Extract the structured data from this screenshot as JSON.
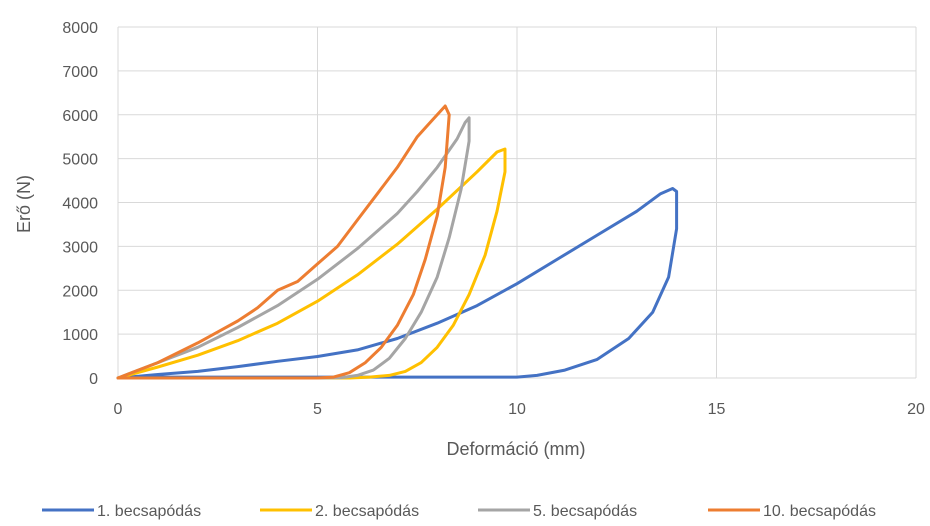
{
  "chart_data": {
    "type": "line",
    "xlabel": "Deformáció (mm)",
    "ylabel": "Erő (N)",
    "xlim": [
      0,
      20
    ],
    "ylim": [
      0,
      8000
    ],
    "x_ticks": [
      "0",
      "5",
      "10",
      "15",
      "20"
    ],
    "y_ticks": [
      "0",
      "1000",
      "2000",
      "3000",
      "4000",
      "5000",
      "6000",
      "7000",
      "8000"
    ],
    "grid": true,
    "legend_position": "bottom",
    "series": [
      {
        "name": "1. becsapódás",
        "color": "#4472C4",
        "x": [
          0,
          1,
          2,
          3,
          4,
          5,
          6,
          7,
          8,
          9,
          10,
          11,
          12,
          13,
          13.6,
          13.9,
          14.0,
          14.0,
          13.8,
          13.4,
          12.8,
          12.0,
          11.2,
          10.5,
          10.0,
          9,
          8,
          7,
          6,
          5,
          4,
          3,
          2,
          1,
          0
        ],
        "y": [
          0,
          80,
          150,
          260,
          380,
          490,
          640,
          900,
          1250,
          1650,
          2150,
          2700,
          3250,
          3800,
          4200,
          4320,
          4250,
          3400,
          2300,
          1500,
          900,
          420,
          180,
          60,
          20,
          20,
          20,
          20,
          20,
          20,
          20,
          20,
          20,
          20,
          0
        ]
      },
      {
        "name": "2. becsapódás",
        "color": "#FFC000",
        "x": [
          0,
          1,
          2,
          3,
          4,
          5,
          6,
          7,
          8,
          9,
          9.5,
          9.7,
          9.7,
          9.5,
          9.2,
          8.8,
          8.4,
          8.0,
          7.6,
          7.2,
          6.8,
          6.3,
          5.8,
          5,
          4,
          3,
          2,
          1,
          0
        ],
        "y": [
          0,
          250,
          520,
          850,
          1250,
          1750,
          2350,
          3050,
          3850,
          4700,
          5150,
          5220,
          4700,
          3800,
          2800,
          1900,
          1200,
          700,
          350,
          150,
          60,
          20,
          0,
          0,
          0,
          0,
          0,
          0,
          0
        ]
      },
      {
        "name": "5. becsapódás",
        "color": "#A5A5A5",
        "x": [
          0,
          1,
          2,
          3,
          4,
          5,
          6,
          7,
          7.5,
          8.0,
          8.5,
          8.7,
          8.8,
          8.8,
          8.6,
          8.3,
          8.0,
          7.6,
          7.2,
          6.8,
          6.4,
          6.0,
          5.6,
          5,
          4,
          3,
          2,
          1,
          0
        ],
        "y": [
          0,
          350,
          700,
          1150,
          1650,
          2250,
          2950,
          3750,
          4250,
          4800,
          5450,
          5820,
          5930,
          5400,
          4300,
          3200,
          2300,
          1500,
          900,
          450,
          180,
          60,
          10,
          0,
          0,
          0,
          0,
          0,
          0
        ]
      },
      {
        "name": "10. becsapódás",
        "color": "#ED7D31",
        "x": [
          0,
          1,
          2,
          2.5,
          3,
          3.5,
          4,
          4.5,
          5,
          5.5,
          6,
          6.5,
          7,
          7.5,
          7.9,
          8.2,
          8.3,
          8.2,
          8.0,
          7.7,
          7.4,
          7.0,
          6.6,
          6.2,
          5.8,
          5.4,
          5,
          4,
          3,
          2,
          1,
          0
        ],
        "y": [
          0,
          350,
          800,
          1050,
          1300,
          1600,
          2000,
          2200,
          2600,
          3000,
          3600,
          4200,
          4800,
          5500,
          5900,
          6200,
          6000,
          4800,
          3700,
          2700,
          1900,
          1200,
          700,
          350,
          120,
          20,
          0,
          0,
          0,
          0,
          0,
          0
        ]
      }
    ]
  }
}
